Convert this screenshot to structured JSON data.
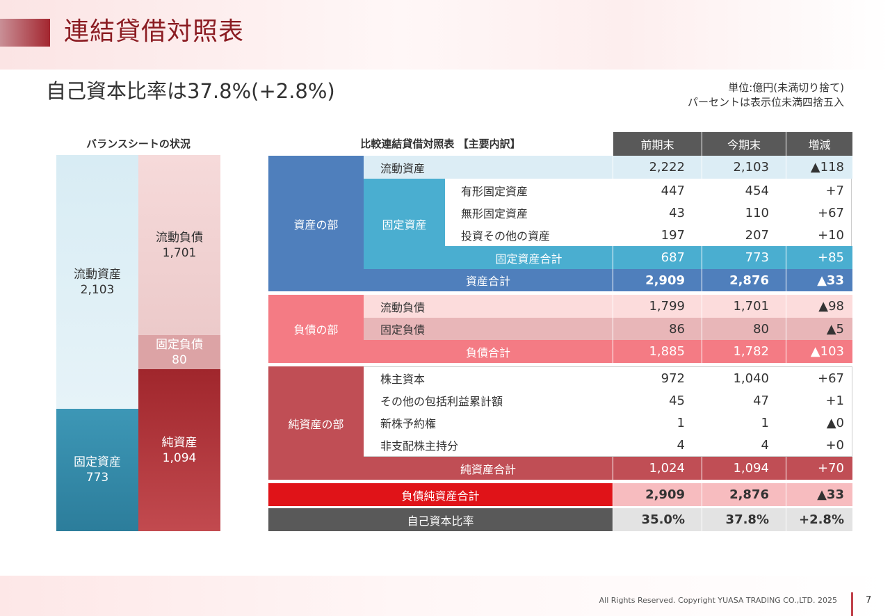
{
  "title": "連結貸借対照表",
  "headline": "自己資本比率は37.8%(+2.8%)",
  "unit_note": {
    "line1": "単位:億円(未満切り捨て)",
    "line2": "パーセントは表示位未満四捨五入"
  },
  "balance_sheet": {
    "title": "バランスシートの状況",
    "current_assets": {
      "label": "流動資産",
      "value": "2,103"
    },
    "fixed_assets": {
      "label": "固定資産",
      "value": "773"
    },
    "current_liabilities": {
      "label": "流動負債",
      "value": "1,701"
    },
    "fixed_liabilities": {
      "label": "固定負債",
      "value": "80"
    },
    "net_assets": {
      "label": "純資産",
      "value": "1,094"
    }
  },
  "table": {
    "title": "比較連結貸借対照表 【主要内訳】",
    "headers": [
      "前期末",
      "今期末",
      "増減"
    ],
    "assets": {
      "section": "資産の部",
      "current": {
        "label": "流動資産",
        "prev": "2,222",
        "curr": "2,103",
        "diff": "▲118"
      },
      "fixed_group": "固定資産",
      "tangible": {
        "label": "有形固定資産",
        "prev": "447",
        "curr": "454",
        "diff": "+7"
      },
      "intangible": {
        "label": "無形固定資産",
        "prev": "43",
        "curr": "110",
        "diff": "+67"
      },
      "investments": {
        "label": "投資その他の資産",
        "prev": "197",
        "curr": "207",
        "diff": "+10"
      },
      "fixed_total": {
        "label": "固定資産合計",
        "prev": "687",
        "curr": "773",
        "diff": "+85"
      },
      "total": {
        "label": "資産合計",
        "prev": "2,909",
        "curr": "2,876",
        "diff": "▲33"
      }
    },
    "liabilities": {
      "section": "負債の部",
      "current": {
        "label": "流動負債",
        "prev": "1,799",
        "curr": "1,701",
        "diff": "▲98"
      },
      "fixed": {
        "label": "固定負債",
        "prev": "86",
        "curr": "80",
        "diff": "▲5"
      },
      "total": {
        "label": "負債合計",
        "prev": "1,885",
        "curr": "1,782",
        "diff": "▲103"
      }
    },
    "net_assets": {
      "section": "純資産の部",
      "capital": {
        "label": "株主資本",
        "prev": "972",
        "curr": "1,040",
        "diff": "+67"
      },
      "oci": {
        "label": "その他の包括利益累計額",
        "prev": "45",
        "curr": "47",
        "diff": "+1"
      },
      "warrants": {
        "label": "新株予約権",
        "prev": "1",
        "curr": "1",
        "diff": "▲0"
      },
      "minority": {
        "label": "非支配株主持分",
        "prev": "4",
        "curr": "4",
        "diff": "+0"
      },
      "total": {
        "label": "純資産合計",
        "prev": "1,024",
        "curr": "1,094",
        "diff": "+70"
      }
    },
    "liab_net_total": {
      "label": "負債純資産合計",
      "prev": "2,909",
      "curr": "2,876",
      "diff": "▲33"
    },
    "equity_ratio": {
      "label": "自己資本比率",
      "prev": "35.0%",
      "curr": "37.8%",
      "diff": "+2.8%"
    }
  },
  "footer": {
    "copyright": "All Rights Reserved. Copyright YUASA TRADING CO.,LTD. 2025",
    "page": "7"
  }
}
